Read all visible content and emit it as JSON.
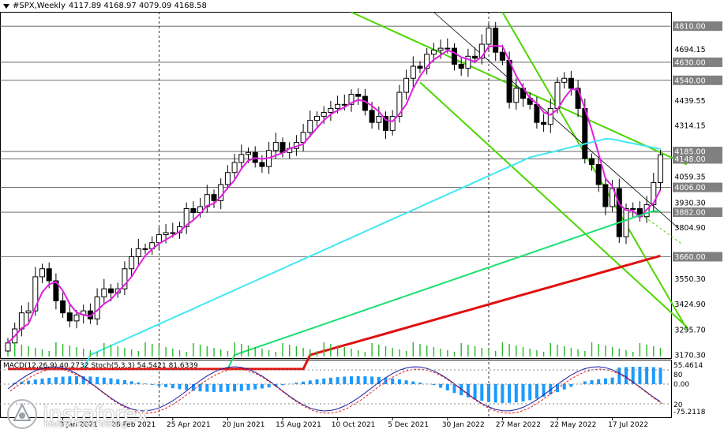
{
  "header": {
    "symbol": "#SPX,Weekly",
    "ohlc": "4117.89 4168.97 4079.09 4168.58"
  },
  "indicator": {
    "macd": "MACD(12,26,9) 40.2732",
    "stoch": "Stoch(5,3,3) 54.5421 81.6339"
  },
  "logo": {
    "name": "instaforex",
    "tagline": "Instant Forex Trading"
  },
  "colors": {
    "bull": "#ffffff",
    "bear": "#000000",
    "ma_magenta": "#e020e0",
    "ma_cyan": "#40e8f0",
    "ma_green": "#18e070",
    "ma_red": "#e01010",
    "channel": "#4cd600",
    "hist": "#1a9aff",
    "volume": "#28b828",
    "label_bg": "#808080"
  },
  "chart_data": {
    "type": "candlestick",
    "price_axis": [
      "4810.00",
      "4694.15",
      "4630.00",
      "4540.00",
      "4439.55",
      "4314.15",
      "4185.00",
      "4148.00",
      "4059.35",
      "4006.00",
      "3930.30",
      "3882.00",
      "3804.90",
      "3660.00",
      "3550.30",
      "3424.90",
      "3295.70",
      "3170.30"
    ],
    "price_axis_labeled": [
      "4810.00",
      "4630.00",
      "4540.00",
      "4185.00",
      "4148.00",
      "4006.00",
      "3882.00",
      "3660.00"
    ],
    "ylim": [
      3170.3,
      4850
    ],
    "x_ticks": [
      "3 Jan 2021",
      "28 Feb 2021",
      "25 Apr 2021",
      "20 Jun 2021",
      "15 Aug 2021",
      "10 Oct 2021",
      "5 Dec 2021",
      "30 Jan 2022",
      "27 Mar 2022",
      "22 May 2022",
      "17 Jul 2022"
    ],
    "x_ticks_positions_weeks": [
      8,
      16,
      24,
      32,
      40,
      48,
      56,
      64,
      72,
      80,
      88
    ],
    "horizontal_levels": [
      4810,
      4630,
      4540,
      4185,
      4148,
      4006,
      3882,
      3660
    ],
    "close": [
      3230,
      3300,
      3380,
      3390,
      3560,
      3600,
      3540,
      3440,
      3380,
      3340,
      3370,
      3390,
      3350,
      3460,
      3500,
      3480,
      3500,
      3600,
      3660,
      3700,
      3700,
      3730,
      3770,
      3780,
      3780,
      3810,
      3900,
      3880,
      3910,
      3970,
      3940,
      4020,
      4080,
      4130,
      4170,
      4180,
      4130,
      4110,
      4190,
      4230,
      4180,
      4200,
      4230,
      4280,
      4340,
      4360,
      4380,
      4400,
      4420,
      4420,
      4470,
      4460,
      4390,
      4330,
      4360,
      4290,
      4360,
      4480,
      4550,
      4610,
      4600,
      4670,
      4690,
      4700,
      4700,
      4620,
      4600,
      4660,
      4650,
      4720,
      4800,
      4680,
      4640,
      4430,
      4500,
      4450,
      4420,
      4330,
      4320,
      4400,
      4530,
      4550,
      4500,
      4400,
      4150,
      4120,
      4020,
      3910,
      4000,
      3760,
      3900,
      3900,
      3860,
      3920,
      4030,
      4168.58
    ],
    "ma_magenta_last": 4050,
    "ma_cyan_last": 4190,
    "ma_green_last": 3890,
    "ma_red_last": 3665,
    "lower_panel": {
      "scale_labels": [
        "55.4614",
        "80",
        "0.00",
        "20",
        "-75.2118"
      ],
      "macd_last": 40.2732,
      "stoch_main_last": 54.5421,
      "stoch_signal_last": 81.6339
    }
  }
}
